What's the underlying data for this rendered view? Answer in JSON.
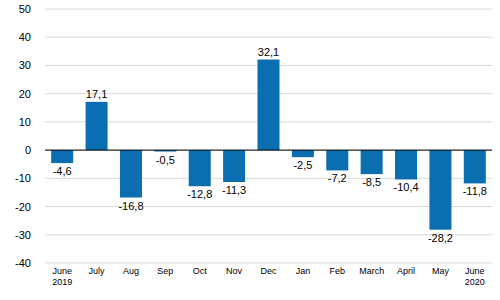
{
  "chart_data": {
    "type": "bar",
    "categories": [
      "June\n2019",
      "July",
      "Aug",
      "Sep",
      "Oct",
      "Nov",
      "Dec",
      "Jan",
      "Feb",
      "March",
      "April",
      "May",
      "June\n2020"
    ],
    "values": [
      -4.6,
      17.1,
      -16.8,
      -0.5,
      -12.8,
      -11.3,
      32.1,
      -2.5,
      -7.2,
      -8.5,
      -10.4,
      -28.2,
      -11.8
    ],
    "value_labels": [
      "-4,6",
      "17,1",
      "-16,8",
      "-0,5",
      "-12,8",
      "-11,3",
      "32,1",
      "-2,5",
      "-7,2",
      "-8,5",
      "-10,4",
      "-28,2",
      "-11,8"
    ],
    "color": "#0b6eb0",
    "ylim": [
      -40,
      50
    ],
    "yticks": [
      -40,
      -30,
      -20,
      -10,
      0,
      10,
      20,
      30,
      40,
      50
    ],
    "grid": true,
    "data_labels": true
  }
}
